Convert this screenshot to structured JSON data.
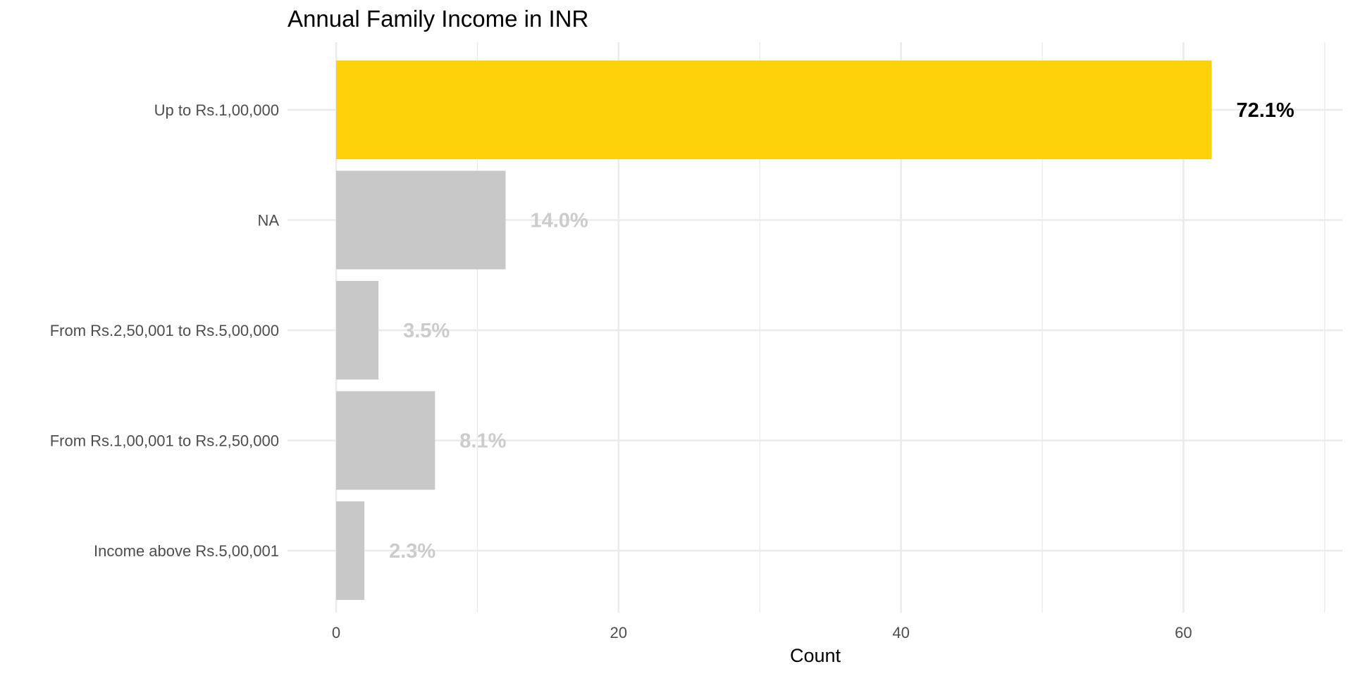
{
  "chart_data": {
    "type": "bar",
    "orientation": "horizontal",
    "title": "Annual Family Income in INR",
    "xlabel": "Count",
    "ylabel": "",
    "xlim": [
      0,
      71
    ],
    "x_ticks": [
      0,
      20,
      40,
      60
    ],
    "grid": true,
    "legend": "none",
    "categories": [
      "Up to Rs.1,00,000",
      "NA",
      "From Rs.2,50,001 to Rs.5,00,000",
      "From Rs.1,00,001 to Rs.2,50,000",
      "Income above Rs.5,00,001"
    ],
    "values": [
      62,
      12,
      3,
      7,
      2
    ],
    "data_labels": [
      "72.1%",
      "14.0%",
      "3.5%",
      "8.1%",
      "2.3%"
    ],
    "highlight_index": 0,
    "colors": {
      "highlight": "#FDD20A",
      "default": "#C8C8C8",
      "highlight_label": "#000000",
      "default_label": "#CCCCCC"
    }
  }
}
